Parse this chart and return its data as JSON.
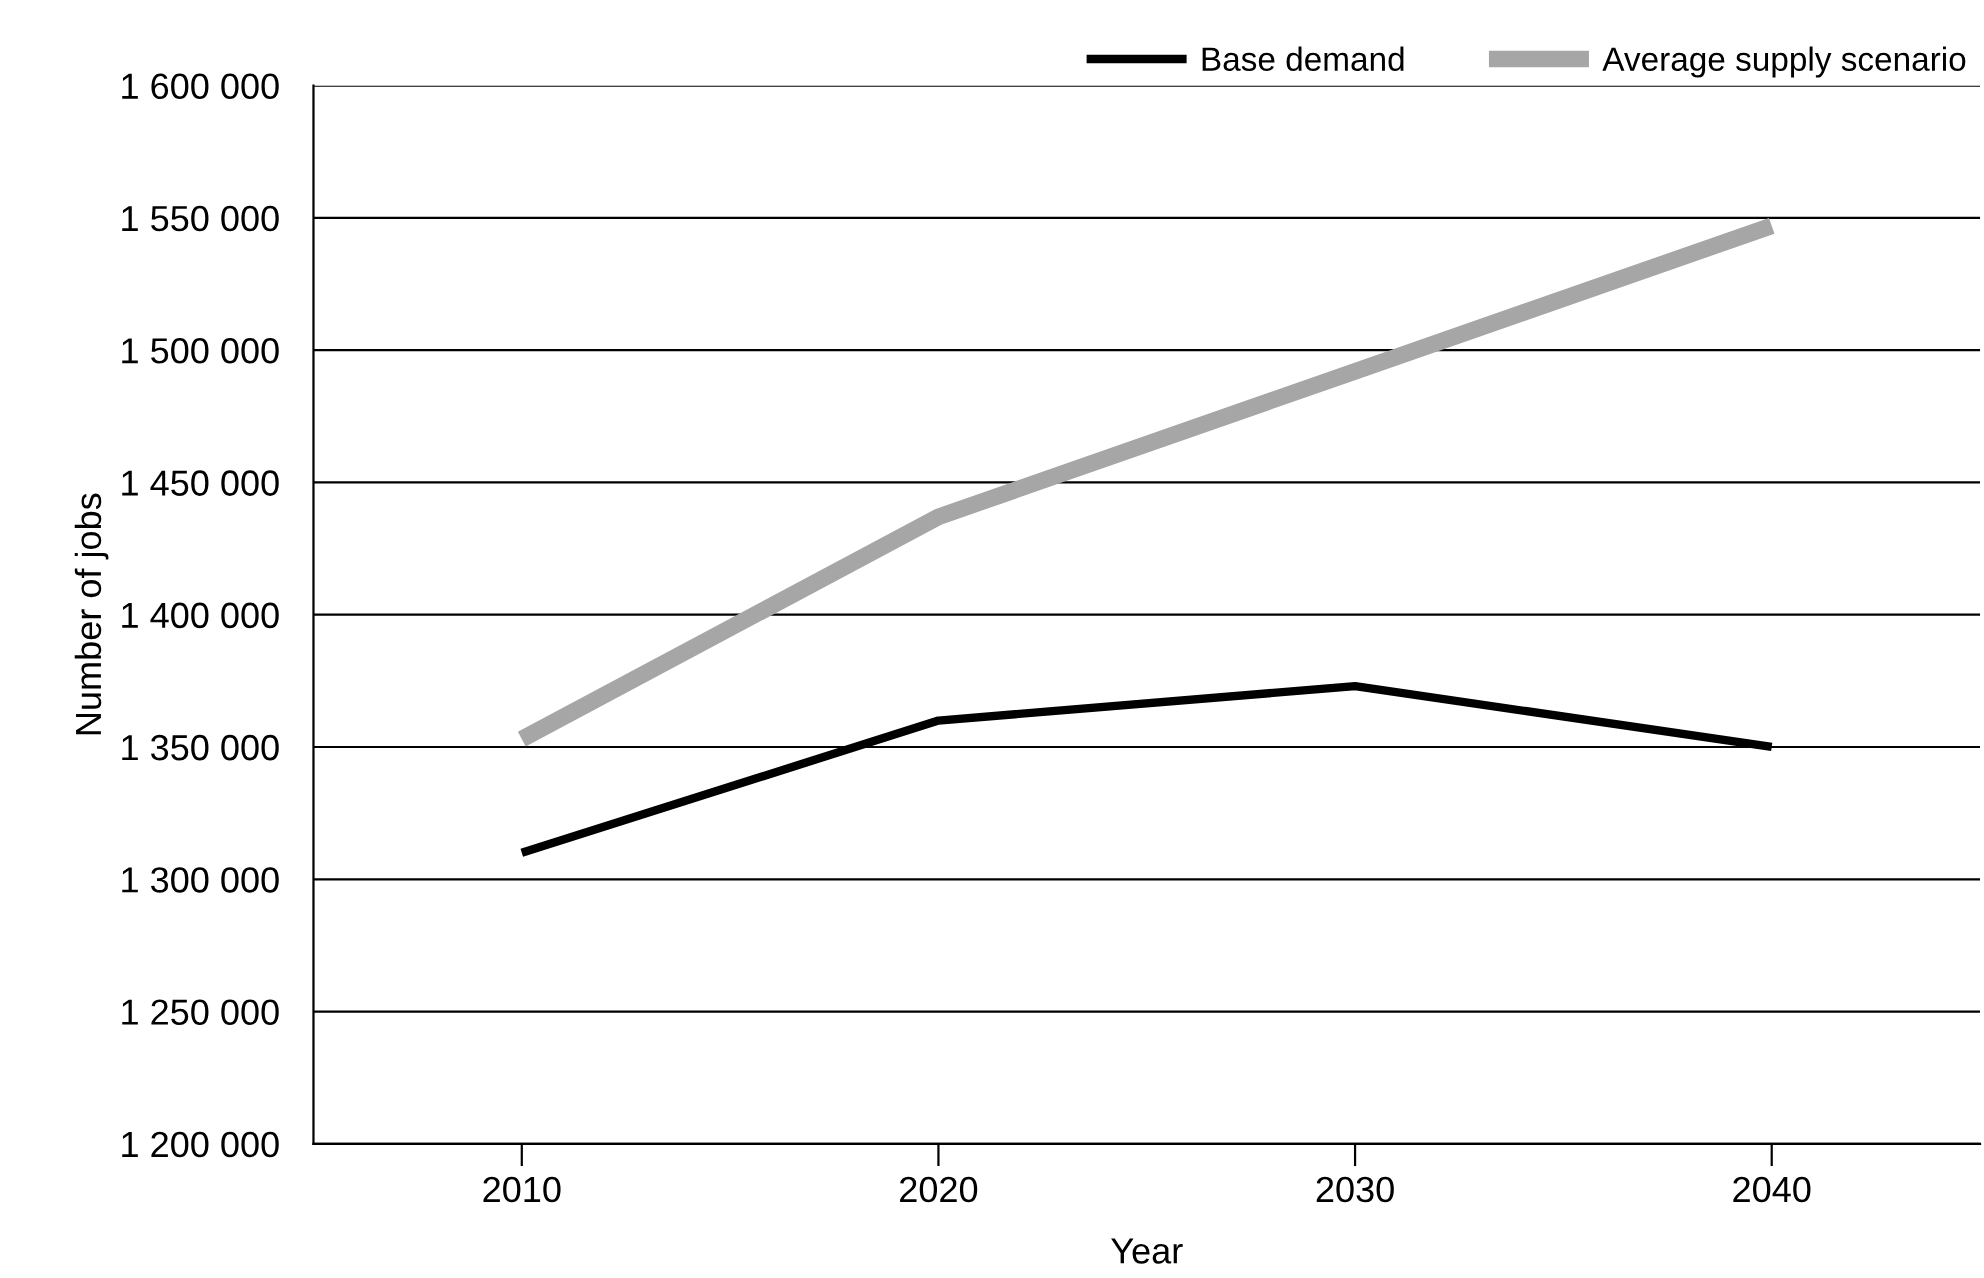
{
  "chart_data": {
    "type": "line",
    "xlabel": "Year",
    "ylabel": "Number of jobs",
    "categories": [
      "2010",
      "2020",
      "2030",
      "2040"
    ],
    "series": [
      {
        "name": "Base demand",
        "color": "#000000",
        "values": [
          1310000,
          1360000,
          1373000,
          1350000
        ]
      },
      {
        "name": "Average supply scenario",
        "color": "#a6a6a6",
        "values": [
          1353000,
          1437000,
          1492000,
          1547000
        ]
      }
    ],
    "ylim": [
      1200000,
      1600000
    ],
    "yticks": [
      {
        "value": 1200000,
        "label": "1 200 000"
      },
      {
        "value": 1250000,
        "label": "1 250 000"
      },
      {
        "value": 1300000,
        "label": "1 300 000"
      },
      {
        "value": 1350000,
        "label": "1 350 000"
      },
      {
        "value": 1400000,
        "label": "1 400 000"
      },
      {
        "value": 1450000,
        "label": "1 450 000"
      },
      {
        "value": 1500000,
        "label": "1 500 000"
      },
      {
        "value": 1550000,
        "label": "1 550 000"
      },
      {
        "value": 1600000,
        "label": "1 600 000"
      }
    ],
    "grid": "y",
    "legend": "top right",
    "marker": "none",
    "line_style": "solid"
  }
}
